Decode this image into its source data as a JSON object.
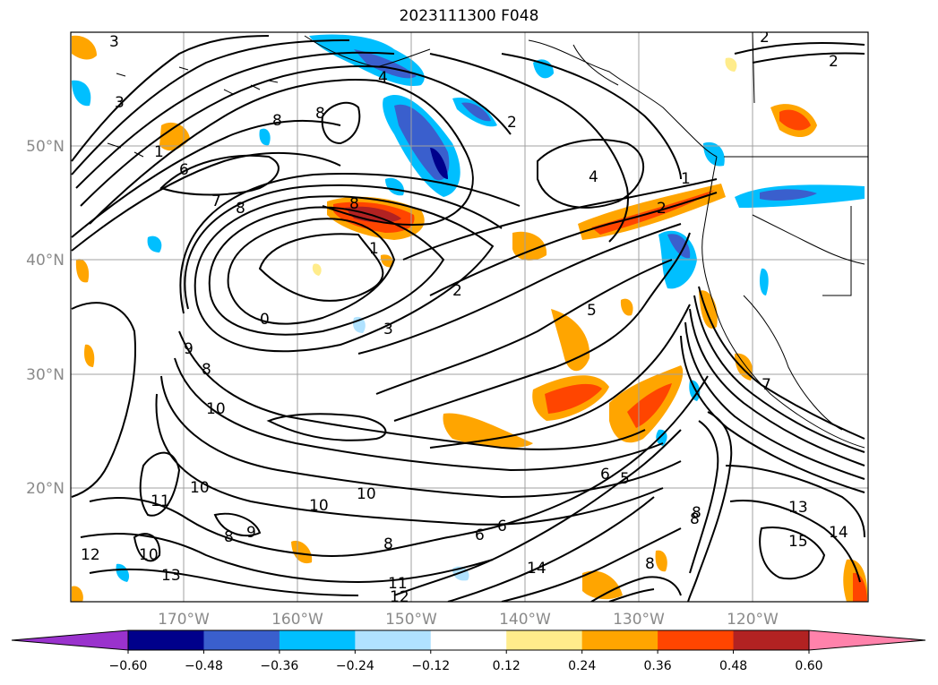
{
  "title": "2023111300 F048",
  "lat_labels": [
    "50°N",
    "40°N",
    "30°N",
    "20°N"
  ],
  "lon_labels": [
    "170°W",
    "160°W",
    "150°W",
    "140°W",
    "130°W",
    "120°W"
  ],
  "colorbar": {
    "ticks": [
      "−0.60",
      "−0.48",
      "−0.36",
      "−0.24",
      "−0.12",
      "0.12",
      "0.24",
      "0.36",
      "0.48",
      "0.60"
    ],
    "colors": [
      "#9a32cd",
      "#00008b",
      "#3a5fcd",
      "#00bfff",
      "#b0e2ff",
      "#ffffff",
      "#ffec8b",
      "#ffa500",
      "#ff4500",
      "#b22222",
      "#ff82ab"
    ]
  },
  "contour_labels": [
    "3",
    "2",
    "4",
    "2",
    "8",
    "8",
    "3",
    "6",
    "7",
    "8",
    "8",
    "1",
    "2",
    "1",
    "2",
    "1",
    "4",
    "2",
    "0",
    "3",
    "5",
    "8",
    "9",
    "10",
    "10",
    "10",
    "11",
    "10",
    "12",
    "9",
    "8",
    "8",
    "10",
    "11",
    "12",
    "13",
    "14",
    "6",
    "5",
    "6",
    "6",
    "8",
    "8",
    "13",
    "14",
    "15",
    "8",
    "7"
  ],
  "colors": {
    "contour": "#000000",
    "grid": "#a0a0a0",
    "axis_label": "#8a8a8a"
  }
}
